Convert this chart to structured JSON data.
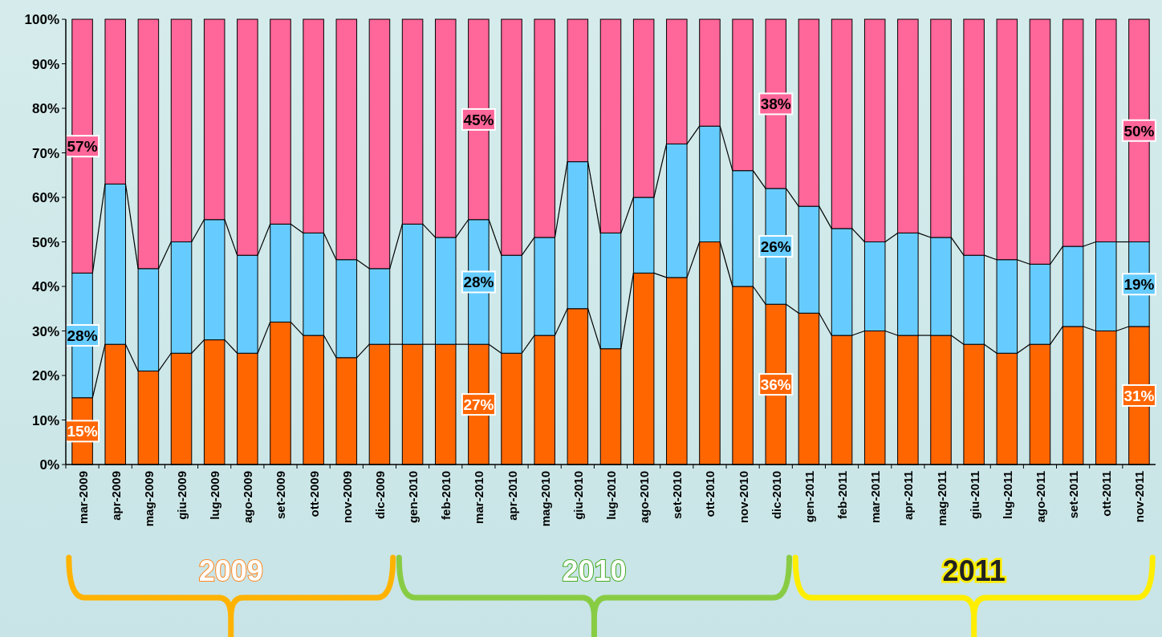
{
  "chart_data": {
    "type": "bar",
    "stacked": true,
    "categories": [
      "mar-2009",
      "apr-2009",
      "mag-2009",
      "giu-2009",
      "lug-2009",
      "ago-2009",
      "set-2009",
      "ott-2009",
      "nov-2009",
      "dic-2009",
      "gen-2010",
      "feb-2010",
      "mar-2010",
      "apr-2010",
      "mag-2010",
      "giu-2010",
      "lug-2010",
      "ago-2010",
      "set-2010",
      "ott-2010",
      "nov-2010",
      "dic-2010",
      "gen-2011",
      "feb-2011",
      "mar-2011",
      "apr-2011",
      "mag-2011",
      "giu-2011",
      "lug-2011",
      "ago-2011",
      "set-2011",
      "ott-2011",
      "nov-2011"
    ],
    "series": [
      {
        "color": "#ff6600",
        "values": [
          15,
          27,
          21,
          25,
          28,
          25,
          32,
          29,
          24,
          27,
          27,
          27,
          27,
          25,
          29,
          35,
          26,
          43,
          42,
          50,
          40,
          36,
          34,
          29,
          30,
          29,
          29,
          27,
          25,
          27,
          31,
          30,
          31
        ],
        "value_labels": [
          "15%",
          null,
          null,
          null,
          null,
          null,
          null,
          null,
          null,
          null,
          null,
          null,
          "27%",
          null,
          null,
          null,
          null,
          null,
          null,
          null,
          null,
          "36%",
          null,
          null,
          null,
          null,
          null,
          null,
          null,
          null,
          null,
          null,
          "31%"
        ]
      },
      {
        "color": "#66ccff",
        "values": [
          28,
          36,
          23,
          25,
          27,
          22,
          22,
          23,
          22,
          17,
          27,
          24,
          28,
          22,
          22,
          33,
          26,
          17,
          30,
          26,
          26,
          26,
          24,
          24,
          20,
          23,
          22,
          20,
          21,
          18,
          18,
          20,
          19
        ],
        "value_labels": [
          "28%",
          null,
          null,
          null,
          null,
          null,
          null,
          null,
          null,
          null,
          null,
          null,
          "28%",
          null,
          null,
          null,
          null,
          null,
          null,
          null,
          null,
          "26%",
          null,
          null,
          null,
          null,
          null,
          null,
          null,
          null,
          null,
          null,
          "19%"
        ]
      },
      {
        "color": "#ff6699",
        "values": [
          57,
          37,
          56,
          50,
          45,
          53,
          46,
          48,
          54,
          56,
          46,
          49,
          45,
          53,
          49,
          32,
          48,
          40,
          28,
          24,
          34,
          38,
          42,
          47,
          50,
          48,
          49,
          53,
          54,
          55,
          51,
          50,
          50
        ],
        "value_labels": [
          "57%",
          null,
          null,
          null,
          null,
          null,
          null,
          null,
          null,
          null,
          null,
          null,
          "45%",
          null,
          null,
          null,
          null,
          null,
          null,
          null,
          null,
          "38%",
          null,
          null,
          null,
          null,
          null,
          null,
          null,
          null,
          null,
          null,
          "50%"
        ]
      }
    ],
    "ylim": [
      0,
      100
    ],
    "yticks": [
      {
        "value": 0,
        "label": "0%"
      },
      {
        "value": 10,
        "label": "10%"
      },
      {
        "value": 20,
        "label": "20%"
      },
      {
        "value": 30,
        "label": "30%"
      },
      {
        "value": 40,
        "label": "40%"
      },
      {
        "value": 50,
        "label": "50%"
      },
      {
        "value": 60,
        "label": "60%"
      },
      {
        "value": 70,
        "label": "70%"
      },
      {
        "value": 80,
        "label": "80%"
      },
      {
        "value": 90,
        "label": "90%"
      },
      {
        "value": 100,
        "label": "100%"
      }
    ],
    "annotations": [
      "2009",
      "2010",
      "2011"
    ]
  }
}
